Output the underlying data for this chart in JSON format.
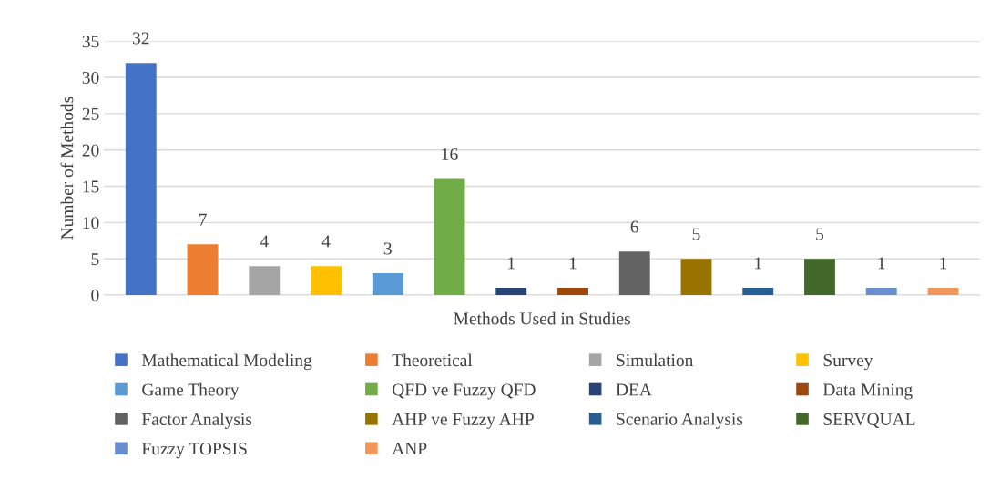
{
  "chart_data": {
    "type": "bar",
    "xlabel": "Methods Used in Studies",
    "ylabel": "Number of Methods",
    "categories": [
      null,
      null,
      null,
      null,
      null,
      null,
      null,
      null,
      null,
      null,
      null,
      null,
      null,
      null
    ],
    "series": [
      {
        "name": "Mathematical Modeling",
        "color": "#4472c4",
        "values": [
          32,
          null,
          null,
          null,
          null,
          null,
          null,
          null,
          null,
          null,
          null,
          null,
          null,
          null
        ]
      },
      {
        "name": "Theoretical",
        "color": "#ed7d31",
        "values": [
          null,
          7,
          null,
          null,
          null,
          null,
          null,
          null,
          null,
          null,
          null,
          null,
          null,
          null
        ]
      },
      {
        "name": "Simulation",
        "color": "#a5a5a5",
        "values": [
          null,
          null,
          4,
          null,
          null,
          null,
          null,
          null,
          null,
          null,
          null,
          null,
          null,
          null
        ]
      },
      {
        "name": "Survey",
        "color": "#ffc000",
        "values": [
          null,
          null,
          null,
          4,
          null,
          null,
          null,
          null,
          null,
          null,
          null,
          null,
          null,
          null
        ]
      },
      {
        "name": "Game Theory",
        "color": "#5b9bd5",
        "values": [
          null,
          null,
          null,
          null,
          3,
          null,
          null,
          null,
          null,
          null,
          null,
          null,
          null,
          null
        ]
      },
      {
        "name": "QFD ve Fuzzy QFD",
        "color": "#70ad47",
        "values": [
          null,
          null,
          null,
          null,
          null,
          16,
          null,
          null,
          null,
          null,
          null,
          null,
          null,
          null
        ]
      },
      {
        "name": "DEA",
        "color": "#264478",
        "values": [
          null,
          null,
          null,
          null,
          null,
          null,
          1,
          null,
          null,
          null,
          null,
          null,
          null,
          null
        ]
      },
      {
        "name": "Data Mining",
        "color": "#9e480e",
        "values": [
          null,
          null,
          null,
          null,
          null,
          null,
          null,
          1,
          null,
          null,
          null,
          null,
          null,
          null
        ]
      },
      {
        "name": "Factor Analysis",
        "color": "#636363",
        "values": [
          null,
          null,
          null,
          null,
          null,
          null,
          null,
          null,
          6,
          null,
          null,
          null,
          null,
          null
        ]
      },
      {
        "name": "AHP ve Fuzzy AHP",
        "color": "#997300",
        "values": [
          null,
          null,
          null,
          null,
          null,
          null,
          null,
          null,
          null,
          5,
          null,
          null,
          null,
          null
        ]
      },
      {
        "name": "Scenario Analysis",
        "color": "#255e91",
        "values": [
          null,
          null,
          null,
          null,
          null,
          null,
          null,
          null,
          null,
          null,
          1,
          null,
          null,
          null
        ]
      },
      {
        "name": "SERVQUAL",
        "color": "#43682b",
        "values": [
          null,
          null,
          null,
          null,
          null,
          null,
          null,
          null,
          null,
          null,
          null,
          5,
          null,
          null
        ]
      },
      {
        "name": "Fuzzy TOPSIS",
        "color": "#698ed0",
        "values": [
          null,
          null,
          null,
          null,
          null,
          null,
          null,
          null,
          null,
          null,
          null,
          null,
          1,
          null
        ]
      },
      {
        "name": "ANP",
        "color": "#f1975a",
        "values": [
          null,
          null,
          null,
          null,
          null,
          null,
          null,
          null,
          null,
          null,
          null,
          null,
          null,
          1
        ]
      }
    ],
    "ylim": [
      0,
      35
    ],
    "yticks": [
      0,
      5,
      10,
      15,
      20,
      25,
      30,
      35
    ],
    "grid": "y",
    "legend": "bottom",
    "data_labels": true
  }
}
